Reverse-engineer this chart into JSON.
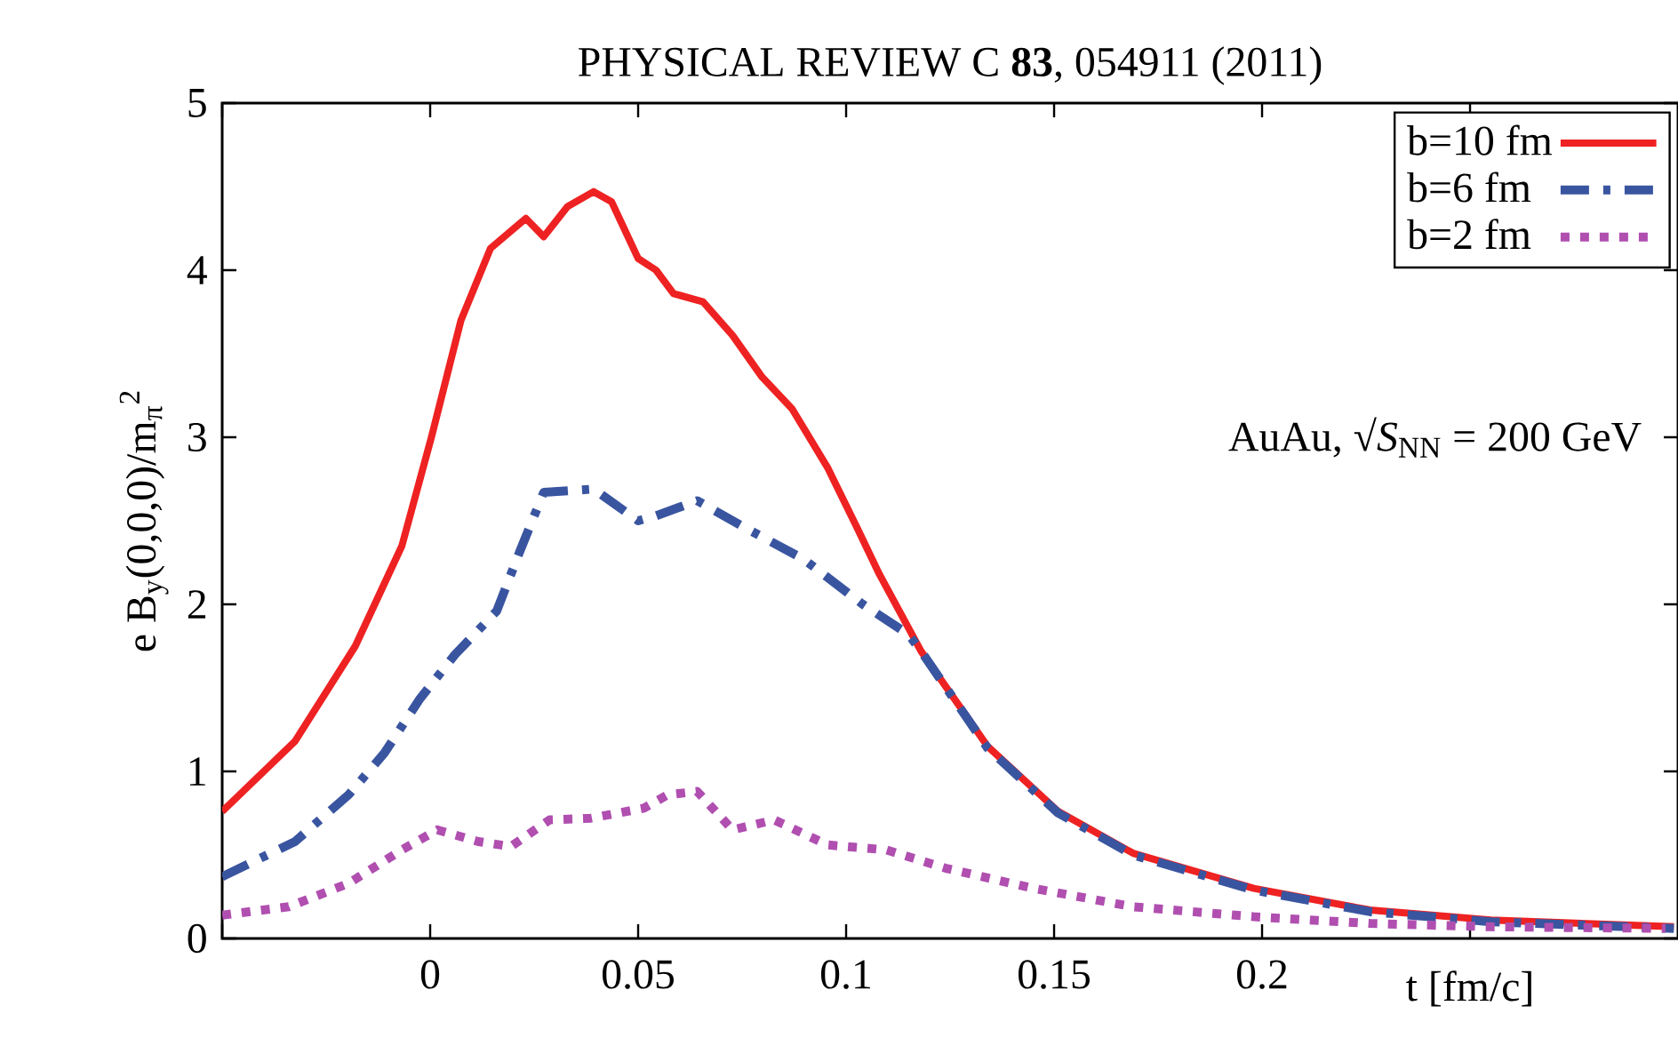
{
  "chart_data": {
    "type": "line",
    "title": "PHYSICAL REVIEW C **83**, 054911 (2011)",
    "xlabel": "t [fm/c]",
    "ylabel": "e B$_{y}$(0,0,0)/m$_{π}$$^{2}$",
    "annotations": [
      "AuAu,  √*S*$_{NN}$ = 200 GeV"
    ],
    "xlim": [
      -0.05,
      0.3
    ],
    "ylim": [
      0,
      5
    ],
    "xticks": [
      {
        "value": -0.05,
        "label": null
      },
      0,
      0.05,
      0.1,
      0.15,
      0.2,
      {
        "value": 0.25,
        "label": null
      }
    ],
    "yticks": [
      0,
      1,
      2,
      3,
      4,
      5
    ],
    "legend": "top right",
    "series": [
      {
        "name": "b=10 fm",
        "color": "#ee2222",
        "line_style": "solid",
        "x": [
          -0.05,
          -0.0325,
          -0.018,
          -0.0068,
          0.0003,
          0.0074,
          0.0145,
          0.023,
          0.0273,
          0.033,
          0.0393,
          0.0436,
          0.05,
          0.0543,
          0.0585,
          0.0656,
          0.0727,
          0.0798,
          0.087,
          0.0955,
          0.1026,
          0.108,
          0.118,
          0.134,
          0.151,
          0.169,
          0.198,
          0.226,
          0.255,
          0.299
        ],
        "values": [
          0.76,
          1.18,
          1.75,
          2.35,
          3.0,
          3.7,
          4.13,
          4.31,
          4.2,
          4.38,
          4.47,
          4.41,
          4.07,
          4.0,
          3.86,
          3.81,
          3.61,
          3.36,
          3.17,
          2.82,
          2.46,
          2.18,
          1.72,
          1.15,
          0.76,
          0.51,
          0.3,
          0.17,
          0.11,
          0.07
        ]
      },
      {
        "name": "b=6  fm",
        "color": "#3a55a0",
        "line_style": "dashdot",
        "x": [
          -0.05,
          -0.0325,
          -0.0196,
          -0.011,
          -0.0026,
          0.006,
          0.016,
          0.0216,
          0.0273,
          0.0393,
          0.05,
          0.0543,
          0.0642,
          0.0756,
          0.0898,
          0.104,
          0.115,
          0.118,
          0.134,
          0.151,
          0.169,
          0.198,
          0.226,
          0.255,
          0.299
        ],
        "values": [
          0.37,
          0.58,
          0.86,
          1.11,
          1.43,
          1.7,
          1.96,
          2.32,
          2.67,
          2.69,
          2.5,
          2.53,
          2.62,
          2.46,
          2.27,
          2.0,
          1.82,
          1.72,
          1.14,
          0.75,
          0.5,
          0.29,
          0.16,
          0.1,
          0.06
        ]
      },
      {
        "name": "b=2  fm",
        "color": "#b04fb0",
        "line_style": "dotted",
        "x": [
          -0.05,
          -0.034,
          -0.0196,
          -0.0068,
          0.0017,
          0.0116,
          0.0194,
          0.0287,
          0.0386,
          0.0514,
          0.0571,
          0.0642,
          0.0727,
          0.0827,
          0.0955,
          0.1097,
          0.124,
          0.145,
          0.169,
          0.198,
          0.226,
          0.255,
          0.297
        ],
        "values": [
          0.14,
          0.19,
          0.33,
          0.53,
          0.65,
          0.58,
          0.55,
          0.71,
          0.72,
          0.78,
          0.86,
          0.88,
          0.65,
          0.71,
          0.56,
          0.53,
          0.42,
          0.3,
          0.19,
          0.13,
          0.09,
          0.07,
          0.06
        ]
      }
    ]
  }
}
